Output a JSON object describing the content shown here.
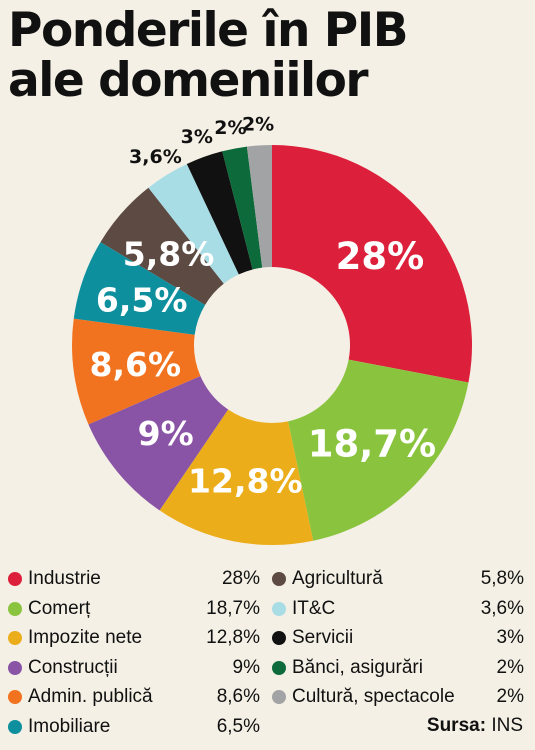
{
  "title_line1": "Ponderile în PIB",
  "title_line2": "ale domeniilor",
  "source_label": "Sursa:",
  "source_value": "INS",
  "chart_data": {
    "type": "pie",
    "donut": true,
    "title": "Ponderile în PIB ale domeniilor",
    "series": [
      {
        "name": "Industrie",
        "value": 28,
        "label": "28%",
        "legend_value": "28%",
        "color": "#dc1f3a"
      },
      {
        "name": "Comerț",
        "value": 18.7,
        "label": "18,7%",
        "legend_value": "18,7%",
        "color": "#8ac43f"
      },
      {
        "name": "Impozite nete",
        "value": 12.8,
        "label": "12,8%",
        "legend_value": "12,8%",
        "color": "#ecad1a"
      },
      {
        "name": "Construcții",
        "value": 9,
        "label": "9%",
        "legend_value": "9%",
        "color": "#8a54a6"
      },
      {
        "name": "Admin. publică",
        "value": 8.6,
        "label": "8,6%",
        "legend_value": "8,6%",
        "color": "#f2731f"
      },
      {
        "name": "Imobiliare",
        "value": 6.5,
        "label": "6,5%",
        "legend_value": "6,5%",
        "color": "#0e8f9e"
      },
      {
        "name": "Agricultură",
        "value": 5.8,
        "label": "5,8%",
        "legend_value": "5,8%",
        "color": "#5d4a42"
      },
      {
        "name": "IT&C",
        "value": 3.6,
        "label": "3,6%",
        "legend_value": "3,6%",
        "color": "#a8dde6"
      },
      {
        "name": "Servicii",
        "value": 3,
        "label": "3%",
        "legend_value": "3%",
        "color": "#111111"
      },
      {
        "name": "Bănci, asigurări",
        "value": 2,
        "label": "2%",
        "legend_value": "2%",
        "color": "#0d6b3b"
      },
      {
        "name": "Cultură, spectacole",
        "value": 2,
        "label": "2%",
        "legend_value": "2%",
        "color": "#a2a3a5"
      }
    ],
    "legend_placement": "bottom"
  }
}
